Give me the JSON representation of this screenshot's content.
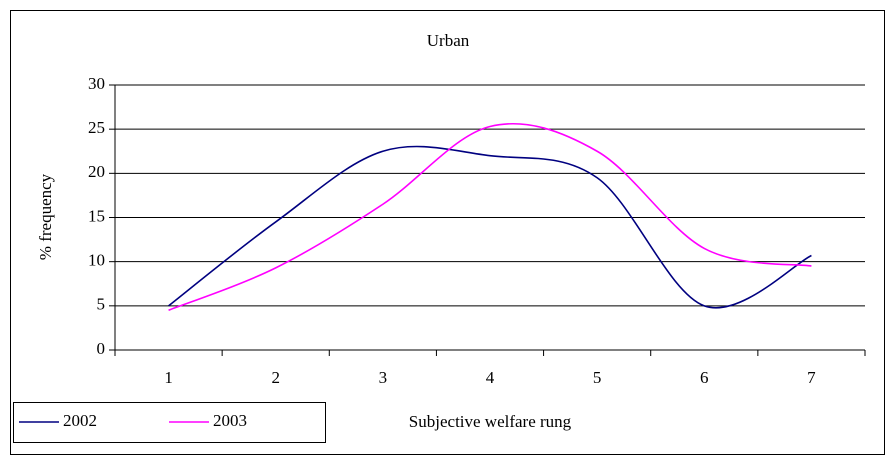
{
  "chart_data": {
    "type": "line",
    "title": "Urban",
    "x_label": "Subjective welfare rung",
    "y_label": "% frequency",
    "categories": [
      "1",
      "2",
      "3",
      "4",
      "5",
      "6",
      "7"
    ],
    "series": [
      {
        "name": "2002",
        "color": "#000080",
        "values": [
          5,
          14.5,
          22.5,
          22,
          19.5,
          5,
          10.7
        ]
      },
      {
        "name": "2003",
        "color": "#ff00ff",
        "values": [
          4.5,
          9.3,
          16.5,
          25.3,
          22.5,
          11.5,
          9.5
        ]
      }
    ],
    "ylim": [
      0,
      30
    ],
    "yticks": [
      0,
      5,
      10,
      15,
      20,
      25,
      30
    ],
    "grid": true,
    "smooth": true,
    "legend": "bottom-left"
  }
}
